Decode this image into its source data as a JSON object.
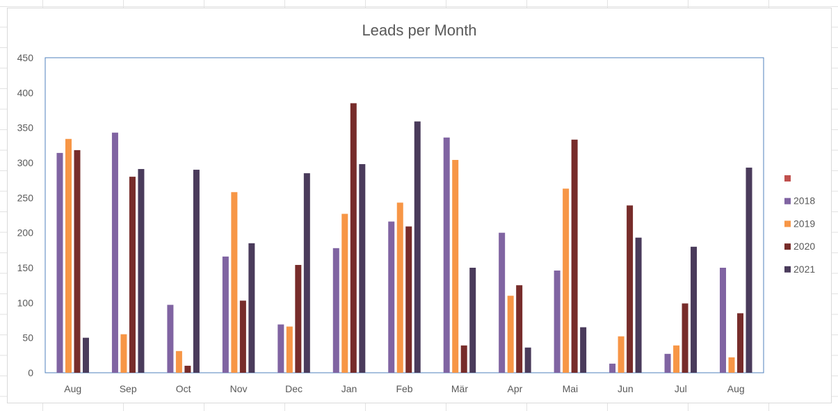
{
  "chart_data": {
    "type": "bar",
    "title": "Leads per Month",
    "xlabel": "",
    "ylabel": "",
    "categories": [
      "Aug",
      "Sep",
      "Oct",
      "Nov",
      "Dec",
      "Jan",
      "Feb",
      "Mär",
      "Apr",
      "Mai",
      "Jun",
      "Jul",
      "Aug"
    ],
    "ylim": [
      0,
      450
    ],
    "yticks": [
      0,
      50,
      100,
      150,
      200,
      250,
      300,
      350,
      400,
      450
    ],
    "grid": false,
    "legend_position": "right",
    "legend_extra_entry": {
      "name": "",
      "color": "#c0504d"
    },
    "series": [
      {
        "name": "2018",
        "color": "#8064a2",
        "values": [
          314,
          343,
          97,
          166,
          69,
          178,
          216,
          336,
          200,
          146,
          13,
          27,
          150
        ]
      },
      {
        "name": "2019",
        "color": "#f79646",
        "values": [
          334,
          55,
          31,
          258,
          66,
          227,
          243,
          304,
          110,
          263,
          52,
          39,
          22
        ]
      },
      {
        "name": "2020",
        "color": "#772c2a",
        "values": [
          318,
          280,
          10,
          103,
          154,
          385,
          209,
          39,
          125,
          333,
          239,
          99,
          85
        ]
      },
      {
        "name": "2021",
        "color": "#4a3b5b",
        "values": [
          50,
          291,
          290,
          185,
          285,
          298,
          359,
          150,
          36,
          65,
          193,
          180,
          293
        ]
      }
    ]
  }
}
